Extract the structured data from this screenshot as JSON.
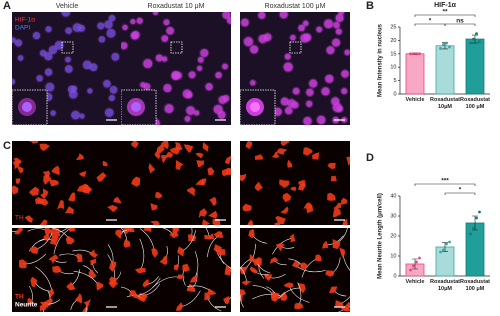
{
  "figure": {
    "panel_labels": [
      "A",
      "B",
      "C",
      "D"
    ],
    "panel_a": {
      "columns": [
        "Vehicle",
        "Roxadustat 10 μM",
        "Roxadustat 100 μM"
      ],
      "channels": [
        {
          "name": "HIF-1α",
          "color": "#ff3a3a"
        },
        {
          "name": "DAPI",
          "color": "#5a78ff"
        }
      ]
    },
    "panel_c": {
      "row1_channels": [
        {
          "name": "TH",
          "color": "#ff3a20"
        }
      ],
      "row2_channels": [
        {
          "name": "TH",
          "color": "#ff3a20"
        },
        {
          "name": "Neurite",
          "color": "#ffffff"
        }
      ]
    }
  },
  "chart_data": [
    {
      "type": "bar",
      "title": "HIF-1α",
      "y_label": "Mean Intensity in nucleus",
      "categories": [
        "Vehicle",
        "Roxadustat 10μM",
        "Roxadustat 100 μM"
      ],
      "values": [
        15,
        18,
        20.5
      ],
      "errors": [
        0.3,
        1.2,
        1.5
      ],
      "points": [
        [
          15,
          15,
          15,
          15
        ],
        [
          17,
          18.5,
          19,
          17.5
        ],
        [
          19,
          20.5,
          22.5,
          19.5
        ]
      ],
      "colors": [
        "#f7a8c4",
        "#a9dcd9",
        "#1f9e9a"
      ],
      "edge_colors": [
        "#e8457c",
        "#3aa6a6",
        "#137a77"
      ],
      "ylim": [
        0,
        25
      ],
      "yticks": [
        0,
        5,
        10,
        15,
        20,
        25
      ],
      "significance": [
        {
          "text": "**",
          "from": 0,
          "to": 2
        },
        {
          "text": "*",
          "from": 0,
          "to": 1
        },
        {
          "text": "ns",
          "from": 1,
          "to": 2
        }
      ]
    },
    {
      "type": "bar",
      "y_label": "Mean Neurite Length (μm/cell)",
      "categories": [
        "Vehicle",
        "Roxadustat 10μM",
        "Roxadustat 100 μM"
      ],
      "values": [
        6,
        14.5,
        26.5
      ],
      "errors": [
        2.5,
        2.2,
        3.5
      ],
      "points": [
        [
          3,
          5,
          7,
          9
        ],
        [
          12,
          13,
          16,
          17
        ],
        [
          21,
          24,
          29,
          32
        ]
      ],
      "colors": [
        "#f7a8c4",
        "#a9dcd9",
        "#1f9e9a"
      ],
      "edge_colors": [
        "#e8457c",
        "#3aa6a6",
        "#137a77"
      ],
      "ylim": [
        0,
        40
      ],
      "yticks": [
        0,
        10,
        20,
        30,
        40
      ],
      "significance": [
        {
          "text": "***",
          "from": 0,
          "to": 2
        },
        {
          "text": "*",
          "from": 1,
          "to": 2
        }
      ]
    }
  ]
}
